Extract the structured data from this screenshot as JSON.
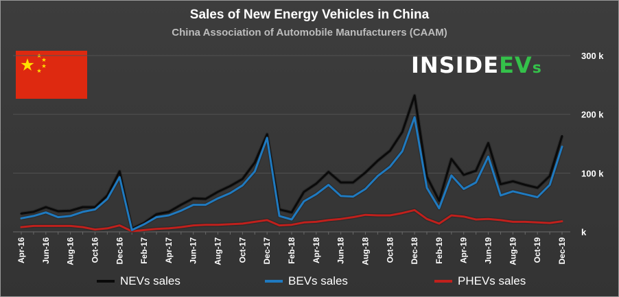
{
  "header": {
    "title": "Sales of New Energy Vehicles in China",
    "subtitle": "China Association of Automobile Manufacturers (CAAM)"
  },
  "brand": {
    "part1": "INSIDE",
    "part2": "EV",
    "part3": "s"
  },
  "flag": {
    "name": "China flag",
    "red": "#de2910",
    "yellow": "#ffde00"
  },
  "colors": {
    "nev": "#0a0a0a",
    "bev": "#1f7ac0",
    "phev": "#c0201c",
    "background": "#383838",
    "grid": "#525252"
  },
  "chart_data": {
    "type": "line",
    "title": "Sales of New Energy Vehicles in China",
    "subtitle": "China Association of Automobile Manufacturers (CAAM)",
    "xlabel": "",
    "ylabel": "",
    "ylim": [
      0,
      300000
    ],
    "y_ticks": [
      {
        "value": 0,
        "label": "k"
      },
      {
        "value": 100000,
        "label": "100 k"
      },
      {
        "value": 200000,
        "label": "200 k"
      },
      {
        "value": 300000,
        "label": "300 k"
      }
    ],
    "y_axis_side": "right",
    "grid": true,
    "legend_position": "bottom",
    "categories": [
      "Apr-16",
      "May-16",
      "Jun-16",
      "Jul-16",
      "Aug-16",
      "Sep-16",
      "Oct-16",
      "Nov-16",
      "Dec-16",
      "Jan-17",
      "Feb-17",
      "Mar-17",
      "Apr-17",
      "May-17",
      "Jun-17",
      "Jul-17",
      "Aug-17",
      "Sep-17",
      "Oct-17",
      "Nov-17",
      "Dec-17",
      "Jan-18",
      "Feb-18",
      "Mar-18",
      "Apr-18",
      "May-18",
      "Jun-18",
      "Jul-18",
      "Aug-18",
      "Sep-18",
      "Oct-18",
      "Nov-18",
      "Dec-18",
      "Jan-19",
      "Feb-19",
      "Mar-19",
      "Apr-19",
      "May-19",
      "Jun-19",
      "Jul-19",
      "Aug-19",
      "Sep-19",
      "Oct-19",
      "Nov-19",
      "Dec-19"
    ],
    "tick_labels": [
      "Apr-16",
      "Jun-16",
      "Aug-16",
      "Oct-16",
      "Dec-16",
      "Feb-17",
      "Apr-17",
      "Jun-17",
      "Aug-17",
      "Oct-17",
      "Dec-17",
      "Feb-18",
      "Apr-18",
      "Jun-18",
      "Aug-18",
      "Oct-18",
      "Dec-18",
      "Feb-19",
      "Apr-19",
      "Jun-19",
      "Aug-19",
      "Oct-19",
      "Dec-19"
    ],
    "series": [
      {
        "name": "NEVs sales",
        "color": "#0a0a0a",
        "values": [
          31000,
          34000,
          42000,
          35000,
          36000,
          42000,
          42000,
          62000,
          103000,
          5000,
          15000,
          30000,
          34000,
          46000,
          57000,
          56000,
          68000,
          78000,
          90000,
          118000,
          166000,
          38000,
          33000,
          68000,
          82000,
          102000,
          84000,
          84000,
          101000,
          121000,
          138000,
          170000,
          232000,
          94000,
          53000,
          124000,
          97000,
          104000,
          151000,
          81000,
          86000,
          80000,
          75000,
          95000,
          163000
        ]
      },
      {
        "name": "BEVs sales",
        "color": "#1f7ac0",
        "values": [
          23000,
          27000,
          33000,
          25000,
          27000,
          34000,
          38000,
          56000,
          93000,
          3000,
          13000,
          25000,
          28000,
          36000,
          46000,
          46000,
          57000,
          66000,
          79000,
          103000,
          160000,
          27000,
          21000,
          52000,
          64000,
          80000,
          61000,
          60000,
          73000,
          95000,
          111000,
          137000,
          195000,
          75000,
          40000,
          96000,
          73000,
          84000,
          128000,
          62000,
          69000,
          64000,
          59000,
          80000,
          145000
        ]
      },
      {
        "name": "PHEVs sales",
        "color": "#c0201c",
        "values": [
          8000,
          10000,
          10000,
          10000,
          10000,
          8000,
          4000,
          6000,
          11000,
          1000,
          3000,
          5000,
          6000,
          8000,
          11000,
          12000,
          12000,
          13000,
          14000,
          17000,
          20000,
          11000,
          12000,
          16000,
          17000,
          20000,
          22000,
          25000,
          29000,
          28000,
          28000,
          32000,
          37000,
          22000,
          14000,
          28000,
          26000,
          21000,
          22000,
          20000,
          17000,
          17000,
          16000,
          15000,
          18000
        ]
      }
    ]
  }
}
